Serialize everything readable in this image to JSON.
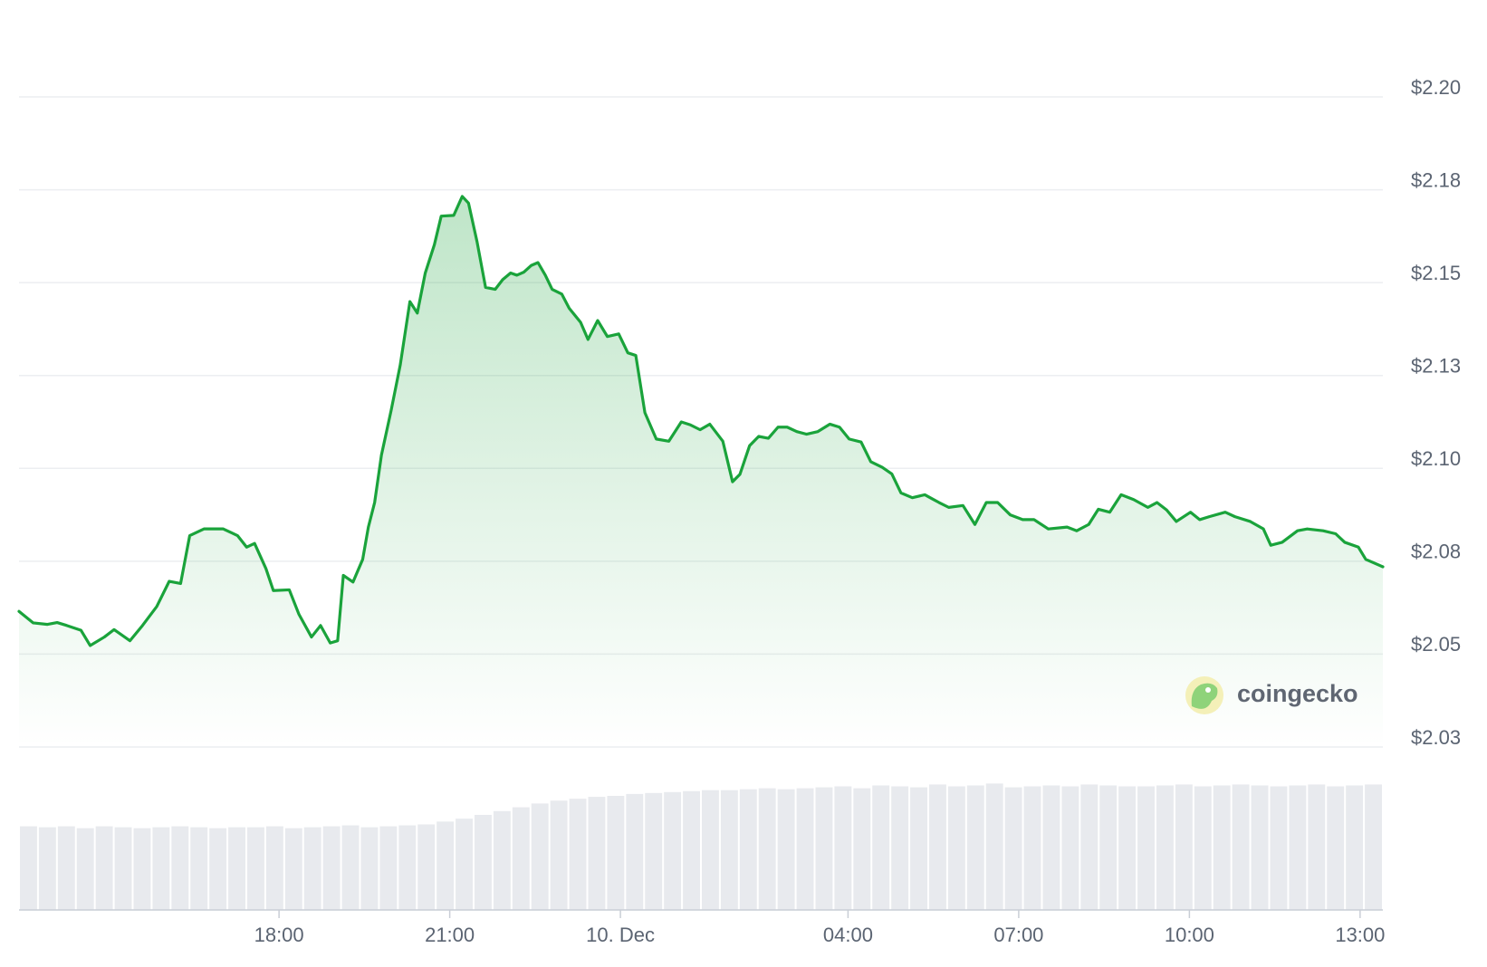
{
  "chart_data": {
    "type": "line",
    "color": "#1aa33b",
    "grid": true,
    "watermark": "coingecko",
    "xlim": [
      -10.57,
      13.4
    ],
    "ylim": [
      2.025,
      2.2
    ],
    "xticks": [
      {
        "value": -6,
        "label": "18:00"
      },
      {
        "value": -3,
        "label": "21:00"
      },
      {
        "value": 0,
        "label": "10. Dec"
      },
      {
        "value": 4,
        "label": "04:00"
      },
      {
        "value": 7,
        "label": "07:00"
      },
      {
        "value": 10,
        "label": "10:00"
      },
      {
        "value": 13,
        "label": "13:00"
      }
    ],
    "yticks": [
      {
        "value": 2.2,
        "label": "$2.20"
      },
      {
        "value": 2.175,
        "label": "$2.18"
      },
      {
        "value": 2.15,
        "label": "$2.15"
      },
      {
        "value": 2.125,
        "label": "$2.13"
      },
      {
        "value": 2.1,
        "label": "$2.10"
      },
      {
        "value": 2.075,
        "label": "$2.08"
      },
      {
        "value": 2.05,
        "label": "$2.05"
      },
      {
        "value": 2.025,
        "label": "$2.03"
      }
    ],
    "x": [
      -10.57,
      -10.32,
      -10.07,
      -9.9,
      -9.73,
      -9.48,
      -9.32,
      -9.07,
      -8.9,
      -8.62,
      -8.4,
      -8.15,
      -7.93,
      -7.73,
      -7.57,
      -7.32,
      -6.98,
      -6.73,
      -6.57,
      -6.43,
      -6.23,
      -6.1,
      -5.82,
      -5.65,
      -5.43,
      -5.27,
      -5.1,
      -4.97,
      -4.87,
      -4.7,
      -4.53,
      -4.43,
      -4.32,
      -4.2,
      -4.03,
      -3.87,
      -3.7,
      -3.57,
      -3.43,
      -3.27,
      -3.15,
      -2.93,
      -2.78,
      -2.67,
      -2.52,
      -2.37,
      -2.2,
      -2.07,
      -1.93,
      -1.82,
      -1.7,
      -1.57,
      -1.45,
      -1.32,
      -1.2,
      -1.03,
      -0.9,
      -0.7,
      -0.57,
      -0.4,
      -0.23,
      -0.03,
      0.13,
      0.27,
      0.43,
      0.63,
      0.85,
      1.07,
      1.23,
      1.4,
      1.57,
      1.8,
      1.97,
      2.1,
      2.27,
      2.43,
      2.6,
      2.77,
      2.93,
      3.1,
      3.27,
      3.47,
      3.68,
      3.85,
      4.02,
      4.23,
      4.4,
      4.6,
      4.77,
      4.93,
      5.13,
      5.35,
      5.48,
      5.6,
      5.77,
      6.02,
      6.23,
      6.43,
      6.63,
      6.85,
      7.07,
      7.27,
      7.52,
      7.85,
      8.02,
      8.23,
      8.4,
      8.6,
      8.8,
      9.02,
      9.27,
      9.43,
      9.6,
      9.77,
      10.02,
      10.18,
      10.35,
      10.63,
      10.8,
      11.07,
      11.3,
      11.43,
      11.63,
      11.9,
      12.07,
      12.35,
      12.57,
      12.73,
      12.97,
      13.1,
      13.4
    ],
    "values": [
      2.0615,
      2.0584,
      2.058,
      2.0585,
      2.0577,
      2.0564,
      2.0523,
      2.0546,
      2.0566,
      2.0536,
      2.0577,
      2.0628,
      2.0696,
      2.069,
      2.0819,
      2.0837,
      2.0837,
      2.0819,
      2.0788,
      2.0798,
      2.073,
      2.0671,
      2.0673,
      2.0607,
      2.0546,
      2.0577,
      2.053,
      2.0536,
      2.0712,
      2.0694,
      2.0755,
      2.0842,
      2.0908,
      2.1036,
      2.1156,
      2.1278,
      2.1449,
      2.1418,
      2.1526,
      2.1602,
      2.1679,
      2.1681,
      2.1732,
      2.1714,
      2.161,
      2.1487,
      2.1482,
      2.1508,
      2.1526,
      2.152,
      2.1528,
      2.1546,
      2.1554,
      2.152,
      2.1482,
      2.1469,
      2.1431,
      2.1393,
      2.1347,
      2.1398,
      2.1355,
      2.1362,
      2.1311,
      2.1304,
      2.115,
      2.1079,
      2.1073,
      2.1125,
      2.1117,
      2.1104,
      2.1119,
      2.1073,
      2.0964,
      2.0984,
      2.1061,
      2.1086,
      2.1081,
      2.1111,
      2.1111,
      2.1099,
      2.1092,
      2.1099,
      2.1119,
      2.1111,
      2.1079,
      2.1071,
      2.1018,
      2.1003,
      2.0985,
      2.0934,
      2.0921,
      2.0929,
      2.0918,
      2.0908,
      2.0895,
      2.09,
      2.0849,
      2.0908,
      2.0908,
      2.0875,
      2.0862,
      2.0862,
      2.0837,
      2.0842,
      2.0832,
      2.0849,
      2.089,
      2.0882,
      2.0929,
      2.0916,
      2.0895,
      2.0908,
      2.0888,
      2.0857,
      2.0882,
      2.0862,
      2.087,
      2.0882,
      2.087,
      2.0857,
      2.0837,
      2.0793,
      2.0801,
      2.0832,
      2.0837,
      2.0832,
      2.0824,
      2.0801,
      2.0788,
      2.0755,
      2.0735
    ],
    "volume": {
      "color": "#e8eaee",
      "ylim": [
        0,
        140
      ],
      "values": [
        88,
        87,
        88,
        86,
        88,
        87,
        86,
        87,
        88,
        87,
        86,
        87,
        87,
        88,
        86,
        87,
        88,
        89,
        87,
        88,
        89,
        90,
        93,
        96,
        100,
        104,
        108,
        112,
        115,
        117,
        119,
        120,
        122,
        123,
        124,
        125,
        126,
        126,
        127,
        128,
        127,
        128,
        129,
        130,
        128,
        131,
        130,
        129,
        132,
        130,
        131,
        133,
        129,
        130,
        131,
        130,
        132,
        131,
        130,
        130,
        131,
        132,
        130,
        131,
        132,
        131,
        130,
        131,
        132,
        130,
        131,
        132
      ]
    }
  }
}
